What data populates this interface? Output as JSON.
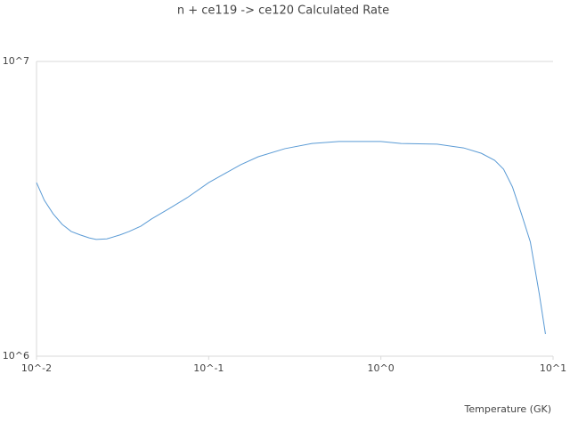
{
  "chart_data": {
    "type": "line",
    "title": "n + ce119 -> ce120 Calculated Rate",
    "x_label": "Temperature (GK)",
    "x_log": true,
    "y_log": true,
    "xlim": [
      0.01,
      10
    ],
    "ylim": [
      1000000,
      10000000
    ],
    "xticks": [
      {
        "value": 0.01,
        "label": "10^-2"
      },
      {
        "value": 0.1,
        "label": "10^-1"
      },
      {
        "value": 1,
        "label": "10^0"
      },
      {
        "value": 10,
        "label": "10^1"
      }
    ],
    "yticks": [
      {
        "value": 1000000,
        "label": "10^6"
      },
      {
        "value": 10000000,
        "label": "10^7"
      }
    ],
    "x": [
      0.01,
      0.0111,
      0.0125,
      0.0141,
      0.0159,
      0.0179,
      0.0202,
      0.0222,
      0.0256,
      0.0306,
      0.0345,
      0.0403,
      0.0465,
      0.059,
      0.075,
      0.1,
      0.121,
      0.153,
      0.194,
      0.277,
      0.398,
      0.571,
      1.0,
      1.31,
      2.12,
      3.02,
      3.83,
      4.58,
      5.16,
      5.81,
      6.55,
      7.38,
      8.31,
      9.03
    ],
    "series": [
      {
        "color": "#5b9bd5",
        "values": [
          3880000,
          3380000,
          3040000,
          2800000,
          2650000,
          2580000,
          2520000,
          2490000,
          2500000,
          2580000,
          2650000,
          2760000,
          2920000,
          3170000,
          3450000,
          3880000,
          4130000,
          4460000,
          4750000,
          5060000,
          5270000,
          5350000,
          5350000,
          5270000,
          5240000,
          5090000,
          4880000,
          4620000,
          4310000,
          3750000,
          3040000,
          2440000,
          1630000,
          1190000
        ]
      }
    ]
  }
}
